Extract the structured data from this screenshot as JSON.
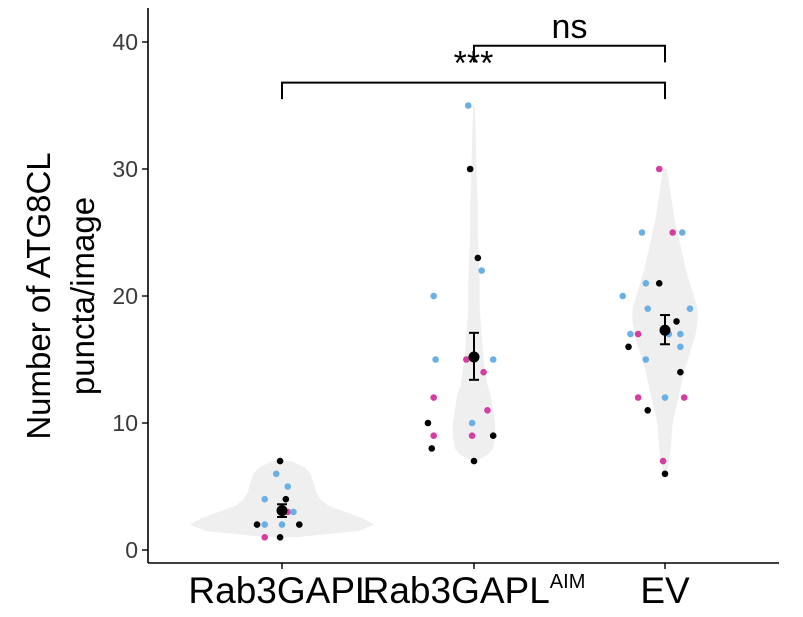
{
  "chart_data": {
    "type": "scatter",
    "subtype": "violin with jittered points and mean ± SE",
    "title": "",
    "ylabel_line1": "Number of ATG8CL",
    "ylabel_line2": "puncta/image",
    "xlabel": "",
    "ylim": [
      0,
      42
    ],
    "yticks": [
      0,
      10,
      20,
      30,
      40
    ],
    "categories": [
      {
        "base": "Rab3GAPL",
        "sup": ""
      },
      {
        "base": "Rab3GAPL",
        "sup": "AIM"
      },
      {
        "base": "EV",
        "sup": ""
      }
    ],
    "colors": {
      "violin_fill": "#efefef",
      "replicate_1": "#000000",
      "replicate_2": "#6ab0e6",
      "replicate_3": "#d63da0"
    },
    "means": [
      {
        "mean": 3.1,
        "se_low": 2.6,
        "se_high": 3.6
      },
      {
        "mean": 15.2,
        "se_low": 13.4,
        "se_high": 17.1
      },
      {
        "mean": 17.3,
        "se_low": 16.2,
        "se_high": 18.5
      }
    ],
    "points": [
      [
        {
          "dx": -0.13,
          "y": 2,
          "c": "replicate_1"
        },
        {
          "dx": -0.09,
          "y": 4,
          "c": "replicate_2"
        },
        {
          "dx": -0.09,
          "y": 2,
          "c": "replicate_2"
        },
        {
          "dx": -0.09,
          "y": 1,
          "c": "replicate_3"
        },
        {
          "dx": -0.03,
          "y": 6,
          "c": "replicate_2"
        },
        {
          "dx": -0.01,
          "y": 7,
          "c": "replicate_1"
        },
        {
          "dx": -0.01,
          "y": 1,
          "c": "replicate_1"
        },
        {
          "dx": 0.0,
          "y": 2,
          "c": "replicate_2"
        },
        {
          "dx": 0.02,
          "y": 4,
          "c": "replicate_1"
        },
        {
          "dx": 0.03,
          "y": 3,
          "c": "replicate_3"
        },
        {
          "dx": 0.03,
          "y": 5,
          "c": "replicate_2"
        },
        {
          "dx": 0.06,
          "y": 3,
          "c": "replicate_2"
        },
        {
          "dx": 0.09,
          "y": 2,
          "c": "replicate_1"
        }
      ],
      [
        {
          "dx": -0.24,
          "y": 10,
          "c": "replicate_1"
        },
        {
          "dx": -0.21,
          "y": 12,
          "c": "replicate_3"
        },
        {
          "dx": -0.22,
          "y": 8,
          "c": "replicate_1"
        },
        {
          "dx": -0.21,
          "y": 9,
          "c": "replicate_3"
        },
        {
          "dx": -0.21,
          "y": 20,
          "c": "replicate_2"
        },
        {
          "dx": -0.2,
          "y": 15,
          "c": "replicate_2"
        },
        {
          "dx": -0.03,
          "y": 35,
          "c": "replicate_2"
        },
        {
          "dx": -0.02,
          "y": 30,
          "c": "replicate_1"
        },
        {
          "dx": -0.04,
          "y": 15,
          "c": "replicate_3"
        },
        {
          "dx": -0.01,
          "y": 10,
          "c": "replicate_2"
        },
        {
          "dx": -0.01,
          "y": 9,
          "c": "replicate_3"
        },
        {
          "dx": 0.0,
          "y": 7,
          "c": "replicate_1"
        },
        {
          "dx": 0.02,
          "y": 23,
          "c": "replicate_1"
        },
        {
          "dx": 0.04,
          "y": 22,
          "c": "replicate_2"
        },
        {
          "dx": 0.05,
          "y": 14,
          "c": "replicate_3"
        },
        {
          "dx": 0.07,
          "y": 11,
          "c": "replicate_3"
        },
        {
          "dx": 0.1,
          "y": 15,
          "c": "replicate_2"
        },
        {
          "dx": 0.1,
          "y": 9,
          "c": "replicate_1"
        }
      ],
      [
        {
          "dx": -0.22,
          "y": 20,
          "c": "replicate_2"
        },
        {
          "dx": -0.18,
          "y": 17,
          "c": "replicate_2"
        },
        {
          "dx": -0.19,
          "y": 16,
          "c": "replicate_1"
        },
        {
          "dx": -0.14,
          "y": 12,
          "c": "replicate_3"
        },
        {
          "dx": -0.14,
          "y": 17,
          "c": "replicate_3"
        },
        {
          "dx": -0.12,
          "y": 25,
          "c": "replicate_2"
        },
        {
          "dx": -0.1,
          "y": 21,
          "c": "replicate_2"
        },
        {
          "dx": -0.1,
          "y": 15,
          "c": "replicate_2"
        },
        {
          "dx": -0.09,
          "y": 19,
          "c": "replicate_2"
        },
        {
          "dx": -0.09,
          "y": 11,
          "c": "replicate_1"
        },
        {
          "dx": -0.03,
          "y": 30,
          "c": "replicate_3"
        },
        {
          "dx": -0.03,
          "y": 21,
          "c": "replicate_1"
        },
        {
          "dx": -0.01,
          "y": 7,
          "c": "replicate_3"
        },
        {
          "dx": 0.0,
          "y": 6,
          "c": "replicate_1"
        },
        {
          "dx": 0.0,
          "y": 12,
          "c": "replicate_2"
        },
        {
          "dx": 0.02,
          "y": 17,
          "c": "replicate_2"
        },
        {
          "dx": 0.04,
          "y": 25,
          "c": "replicate_3"
        },
        {
          "dx": 0.06,
          "y": 18,
          "c": "replicate_1"
        },
        {
          "dx": 0.08,
          "y": 17,
          "c": "replicate_2"
        },
        {
          "dx": 0.08,
          "y": 16,
          "c": "replicate_2"
        },
        {
          "dx": 0.08,
          "y": 14,
          "c": "replicate_1"
        },
        {
          "dx": 0.1,
          "y": 12,
          "c": "replicate_3"
        },
        {
          "dx": 0.13,
          "y": 19,
          "c": "replicate_2"
        },
        {
          "dx": 0.09,
          "y": 25,
          "c": "replicate_2"
        }
      ]
    ],
    "violins": [
      [
        [
          1,
          0.07
        ],
        [
          1.5,
          0.4
        ],
        [
          2,
          0.48
        ],
        [
          2.5,
          0.42
        ],
        [
          3,
          0.33
        ],
        [
          3.5,
          0.24
        ],
        [
          4,
          0.2
        ],
        [
          4.5,
          0.18
        ],
        [
          5,
          0.17
        ],
        [
          5.5,
          0.16
        ],
        [
          6,
          0.15
        ],
        [
          6.5,
          0.12
        ],
        [
          7,
          0.05
        ]
      ],
      [
        [
          7,
          0.01
        ],
        [
          7.5,
          0.07
        ],
        [
          8,
          0.1
        ],
        [
          9,
          0.11
        ],
        [
          10,
          0.11
        ],
        [
          11,
          0.1
        ],
        [
          12,
          0.09
        ],
        [
          13,
          0.07
        ],
        [
          15,
          0.05
        ],
        [
          17,
          0.04
        ],
        [
          19,
          0.03
        ],
        [
          21,
          0.03
        ],
        [
          23,
          0.025
        ],
        [
          25,
          0.02
        ],
        [
          27,
          0.02
        ],
        [
          29,
          0.015
        ],
        [
          31,
          0.012
        ],
        [
          33,
          0.008
        ],
        [
          35,
          0.004
        ]
      ],
      [
        [
          6,
          0.01
        ],
        [
          7,
          0.02
        ],
        [
          8,
          0.03
        ],
        [
          10,
          0.04
        ],
        [
          12,
          0.07
        ],
        [
          14,
          0.1
        ],
        [
          16,
          0.14
        ],
        [
          17,
          0.16
        ],
        [
          18,
          0.17
        ],
        [
          19,
          0.17
        ],
        [
          20,
          0.15
        ],
        [
          22,
          0.11
        ],
        [
          24,
          0.08
        ],
        [
          26,
          0.05
        ],
        [
          28,
          0.03
        ],
        [
          30,
          0.01
        ]
      ]
    ],
    "significance": [
      {
        "label": "***",
        "from": 0,
        "to": 2,
        "y": 36.8,
        "tick_down": 1.3
      },
      {
        "label": "ns",
        "from": 1,
        "to": 2,
        "y": 39.7,
        "tick_down": 1.3
      }
    ]
  }
}
